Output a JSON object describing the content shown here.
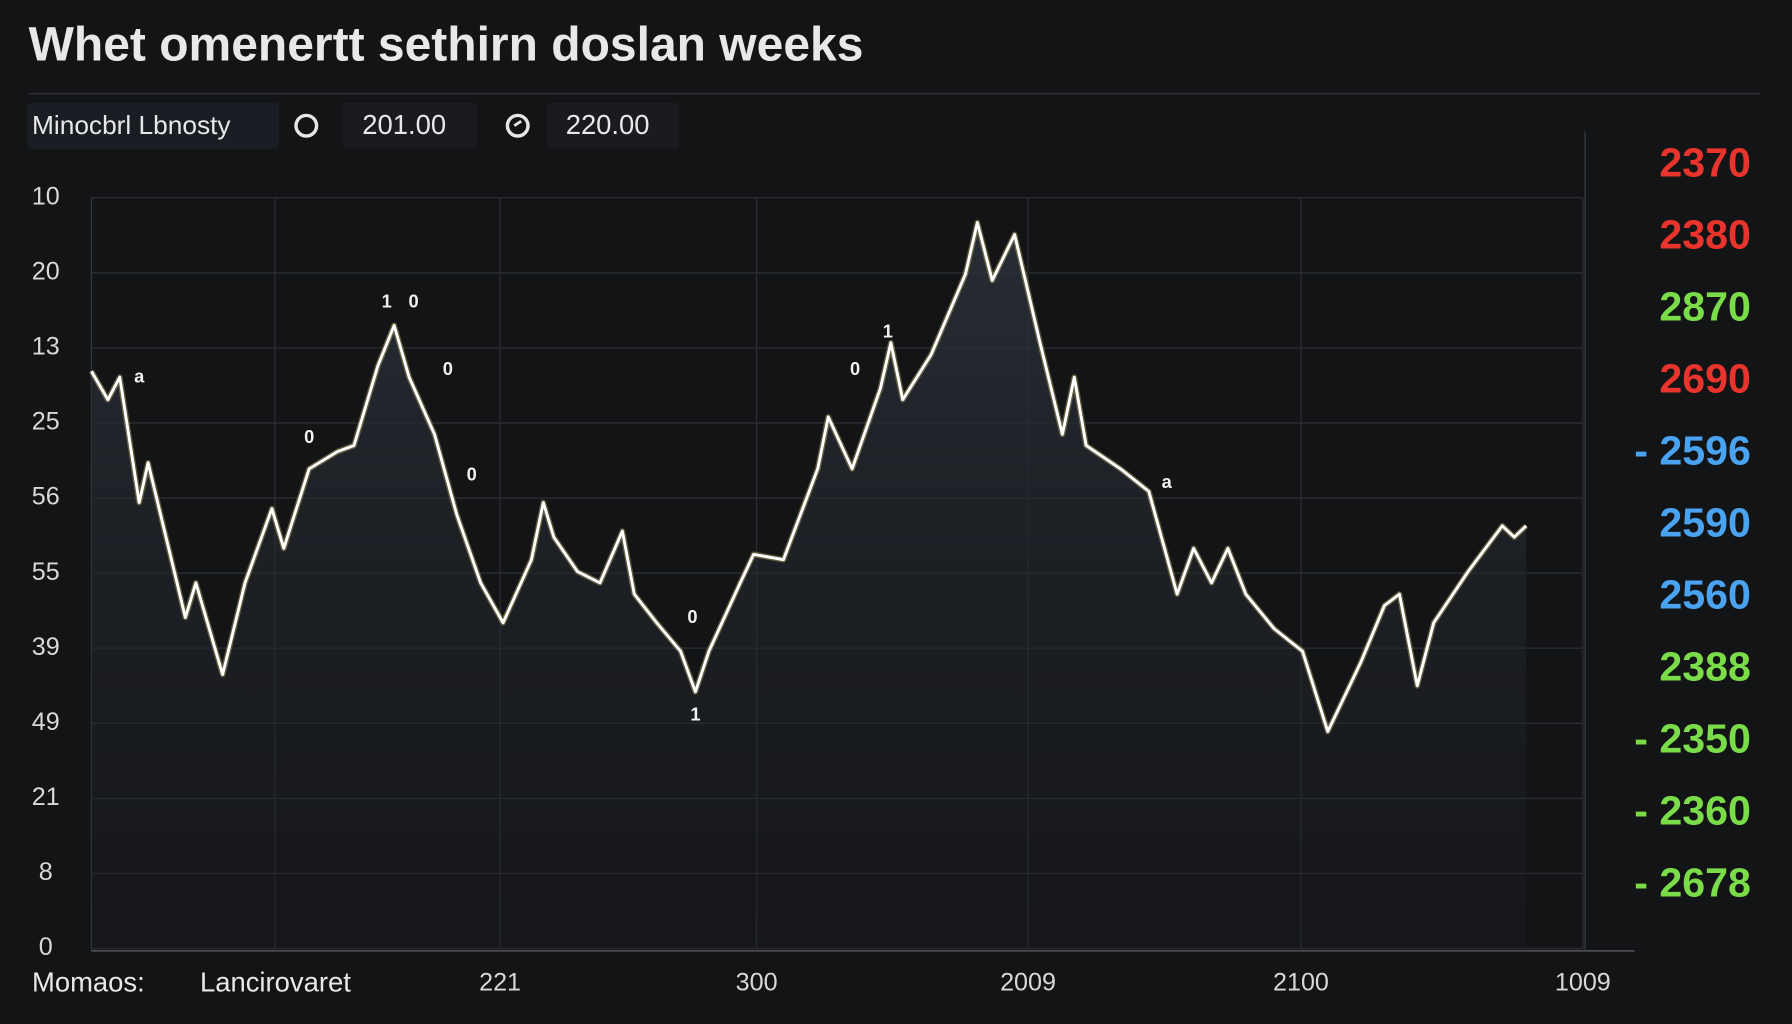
{
  "chart_data": {
    "type": "line",
    "title": "Whet omenertt sethirn doslan weeks",
    "toolbar": {
      "label": "Minocbrl Lbnosty",
      "value_1": "201.00",
      "value_2": "220.00"
    },
    "footer": {
      "label_1": "Momaos:",
      "label_2": "Lancirovaret"
    },
    "ylim": [
      0,
      10
    ],
    "yticks": [
      0,
      {
        "value": 1,
        "label": "8"
      },
      {
        "value": 2,
        "label": "21"
      },
      {
        "value": 3,
        "label": "49"
      },
      {
        "value": 4,
        "label": "39"
      },
      {
        "value": 5,
        "label": "55"
      },
      {
        "value": 6,
        "label": "56"
      },
      {
        "value": 7,
        "label": "25"
      },
      {
        "value": 8,
        "label": "13"
      },
      {
        "value": 9,
        "label": "20"
      },
      10
    ],
    "xlim": [
      0,
      100
    ],
    "xgrid": [
      12.3,
      27.4,
      44.6,
      62.8,
      81.1,
      100
    ],
    "xticks": [
      {
        "value": 27.4,
        "label": "221"
      },
      {
        "value": 44.6,
        "label": "300"
      },
      {
        "value": 62.8,
        "label": "2009"
      },
      {
        "value": 81.1,
        "label": "2100"
      },
      {
        "value": 100,
        "label": "1009"
      }
    ],
    "grid": true,
    "color": "#ffffff",
    "x": [
      0,
      1.1,
      1.9,
      3.2,
      3.8,
      6.3,
      7.0,
      8.8,
      10.3,
      12.1,
      12.9,
      14.6,
      16.5,
      17.6,
      19.2,
      20.3,
      21.3,
      23.0,
      24.5,
      26.1,
      27.6,
      29.5,
      30.3,
      31.0,
      32.6,
      34.1,
      35.6,
      36.4,
      37.9,
      39.5,
      40.5,
      41.4,
      43.5,
      44.4,
      46.4,
      48.7,
      49.4,
      51.0,
      52.9,
      53.6,
      54.4,
      56.3,
      58.6,
      59.4,
      60.4,
      61.9,
      63.6,
      65.1,
      65.9,
      66.7,
      69.0,
      70.9,
      72.8,
      73.9,
      75.1,
      76.2,
      77.4,
      79.3,
      81.2,
      82.9,
      85.1,
      86.7,
      87.7,
      88.9,
      90.0,
      92.3,
      94.6,
      95.4,
      96.2
    ],
    "values": [
      7.69,
      7.31,
      7.61,
      5.94,
      6.47,
      4.41,
      4.87,
      3.65,
      4.87,
      5.86,
      5.33,
      6.39,
      6.62,
      6.7,
      7.76,
      8.3,
      7.61,
      6.85,
      5.78,
      4.87,
      4.34,
      5.18,
      5.94,
      5.48,
      5.02,
      4.87,
      5.56,
      4.72,
      4.34,
      3.96,
      3.42,
      3.96,
      4.87,
      5.25,
      5.18,
      6.39,
      7.08,
      6.39,
      7.46,
      8.07,
      7.31,
      7.91,
      8.98,
      9.67,
      8.9,
      9.51,
      8.07,
      6.85,
      7.61,
      6.7,
      6.39,
      6.09,
      4.72,
      5.33,
      4.87,
      5.33,
      4.72,
      4.26,
      3.96,
      2.89,
      3.81,
      4.57,
      4.72,
      3.5,
      4.34,
      5.02,
      5.63,
      5.48,
      5.63
    ],
    "annotations": [
      {
        "text": "a",
        "x": 3.2,
        "y": 7.6
      },
      {
        "text": "0",
        "x": 14.6,
        "y": 6.8
      },
      {
        "text": "1",
        "x": 19.8,
        "y": 8.6
      },
      {
        "text": "0",
        "x": 21.6,
        "y": 8.6
      },
      {
        "text": "0",
        "x": 23.9,
        "y": 7.7
      },
      {
        "text": "0",
        "x": 25.5,
        "y": 6.3
      },
      {
        "text": "0",
        "x": 40.3,
        "y": 4.4
      },
      {
        "text": "1",
        "x": 40.5,
        "y": 3.1
      },
      {
        "text": "0",
        "x": 51.2,
        "y": 7.7
      },
      {
        "text": "1",
        "x": 53.4,
        "y": 8.2
      },
      {
        "text": "a",
        "x": 72.1,
        "y": 6.2
      }
    ],
    "right_labels": [
      {
        "text": "2370",
        "color": "#e8342c"
      },
      {
        "text": "2380",
        "color": "#e8342c"
      },
      {
        "text": "2870",
        "color": "#7bdc4a"
      },
      {
        "text": "2690",
        "color": "#e8342c"
      },
      {
        "text": "- 2596",
        "color": "#4aa3f0"
      },
      {
        "text": "2590",
        "color": "#4aa3f0"
      },
      {
        "text": "2560",
        "color": "#4aa3f0"
      },
      {
        "text": "2388",
        "color": "#7bdc4a"
      },
      {
        "text": "- 2350",
        "color": "#7bdc4a"
      },
      {
        "text": "- 2360",
        "color": "#7bdc4a"
      },
      {
        "text": "- 2678",
        "color": "#7bdc4a"
      }
    ]
  }
}
